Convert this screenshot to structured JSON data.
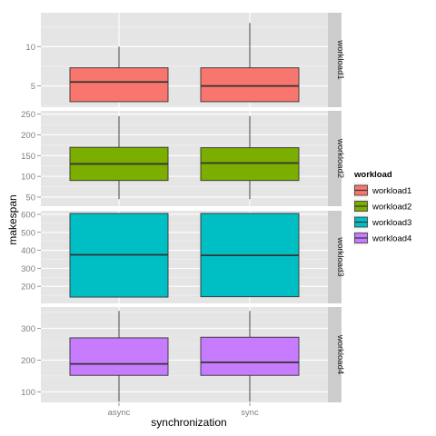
{
  "chart_data": {
    "type": "box",
    "xlabel": "synchronization",
    "ylabel": "makespan",
    "categories": [
      "async",
      "sync"
    ],
    "facet_layout": "rows, free y scales",
    "grid": true,
    "legend": {
      "title": "workload",
      "position": "right",
      "entries": [
        "workload1",
        "workload2",
        "workload3",
        "workload4"
      ]
    },
    "panels": [
      {
        "strip": "workload1",
        "color": "#F8766D",
        "ylim": [
          2.3,
          14.3
        ],
        "yticks": [
          5,
          10
        ],
        "boxes": [
          {
            "category": "async",
            "whisker_low": 3.0,
            "q1": 3.0,
            "median": 5.5,
            "q3": 7.3,
            "whisker_high": 10.0
          },
          {
            "category": "sync",
            "whisker_low": 3.0,
            "q1": 3.0,
            "median": 5.0,
            "q3": 7.3,
            "whisker_high": 13.0
          }
        ]
      },
      {
        "strip": "workload2",
        "color": "#7CAE00",
        "ylim": [
          28,
          258
        ],
        "yticks": [
          50,
          100,
          150,
          200,
          250
        ],
        "boxes": [
          {
            "category": "async",
            "whisker_low": 45,
            "q1": 90,
            "median": 130,
            "q3": 170,
            "whisker_high": 245
          },
          {
            "category": "sync",
            "whisker_low": 45,
            "q1": 90,
            "median": 132,
            "q3": 169,
            "whisker_high": 245
          }
        ]
      },
      {
        "strip": "workload3",
        "color": "#00BFC4",
        "ylim": [
          105,
          620
        ],
        "yticks": [
          200,
          300,
          400,
          500,
          600
        ],
        "boxes": [
          {
            "category": "async",
            "whisker_low": 140,
            "q1": 140,
            "median": 375,
            "q3": 605,
            "whisker_high": 605
          },
          {
            "category": "sync",
            "whisker_low": 142,
            "q1": 142,
            "median": 372,
            "q3": 605,
            "whisker_high": 605
          }
        ]
      },
      {
        "strip": "workload4",
        "color": "#C77CFF",
        "ylim": [
          67,
          367
        ],
        "yticks": [
          100,
          200,
          300
        ],
        "boxes": [
          {
            "category": "async",
            "whisker_low": 70,
            "q1": 152,
            "median": 188,
            "q3": 270,
            "whisker_high": 355
          },
          {
            "category": "sync",
            "whisker_low": 70,
            "q1": 152,
            "median": 193,
            "q3": 272,
            "whisker_high": 355
          }
        ]
      }
    ]
  }
}
